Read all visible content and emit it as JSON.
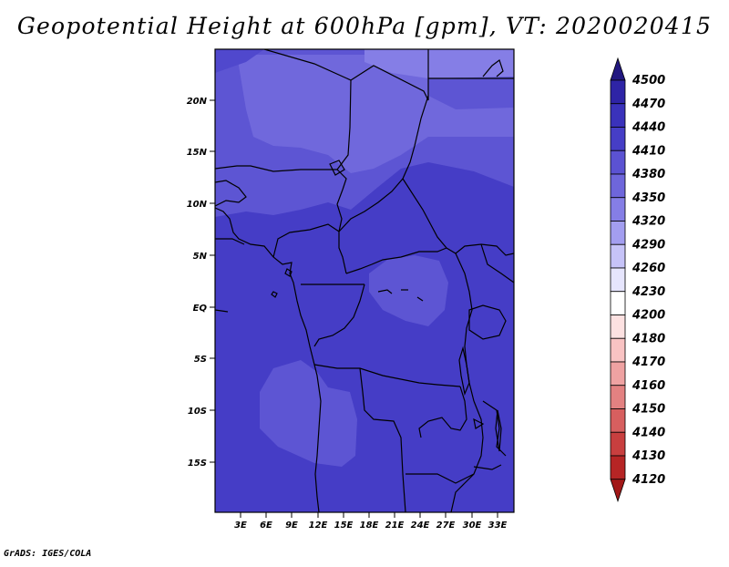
{
  "title": "Geopotential Height at 600hPa [gpm], VT: 2020020415",
  "credit": "GrADS: IGES/COLA",
  "map": {
    "lat_labels": [
      "20N",
      "15N",
      "10N",
      "5N",
      "EQ",
      "5S",
      "10S",
      "15S"
    ],
    "lon_labels": [
      "3E",
      "6E",
      "9E",
      "12E",
      "15E",
      "18E",
      "21E",
      "24E",
      "27E",
      "30E",
      "33E"
    ]
  },
  "colorbar": {
    "levels": [
      "4500",
      "4470",
      "4440",
      "4410",
      "4380",
      "4350",
      "4320",
      "4290",
      "4260",
      "4230",
      "4200",
      "4180",
      "4170",
      "4160",
      "4150",
      "4140",
      "4130",
      "4120"
    ],
    "colors": [
      "#221880",
      "#2e24a6",
      "#3a32bb",
      "#463ec6",
      "#5b52d2",
      "#6e66db",
      "#857ee6",
      "#a39ef0",
      "#c6c3f8",
      "#e6e5fd",
      "#ffffff",
      "#fde1e1",
      "#f9c3c3",
      "#efa2a2",
      "#e38181",
      "#d75f5f",
      "#c83f3f",
      "#b62525",
      "#a21818"
    ]
  }
}
